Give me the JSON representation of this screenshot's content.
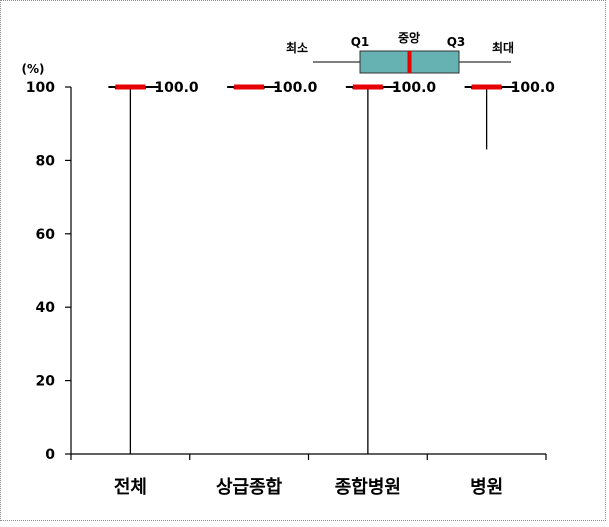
{
  "chart_data": {
    "type": "boxplot",
    "unit": "(%)",
    "ylim": [
      0,
      100
    ],
    "yticks": [
      0,
      20,
      40,
      60,
      80,
      100
    ],
    "categories": [
      "전체",
      "상급종합",
      "종합병원",
      "병원"
    ],
    "boxes": [
      {
        "category": "전체",
        "min": 0,
        "q1": 100,
        "median": 100,
        "q3": 100,
        "max": 100,
        "label": "100.0"
      },
      {
        "category": "상급종합",
        "min": 100,
        "q1": 100,
        "median": 100,
        "q3": 100,
        "max": 100,
        "label": "100.0"
      },
      {
        "category": "종합병원",
        "min": 0,
        "q1": 100,
        "median": 100,
        "q3": 100,
        "max": 100,
        "label": "100.0"
      },
      {
        "category": "병원",
        "min": 83,
        "q1": 100,
        "median": 100,
        "q3": 100,
        "max": 100,
        "label": "100.0"
      }
    ],
    "legend": {
      "min": "최소",
      "q1": "Q1",
      "median": "중앙",
      "q3": "Q3",
      "max": "최대",
      "position": "top"
    },
    "colors": {
      "median": "#e60000",
      "box": "#66b2b2",
      "line": "#000000"
    },
    "grid": false
  }
}
